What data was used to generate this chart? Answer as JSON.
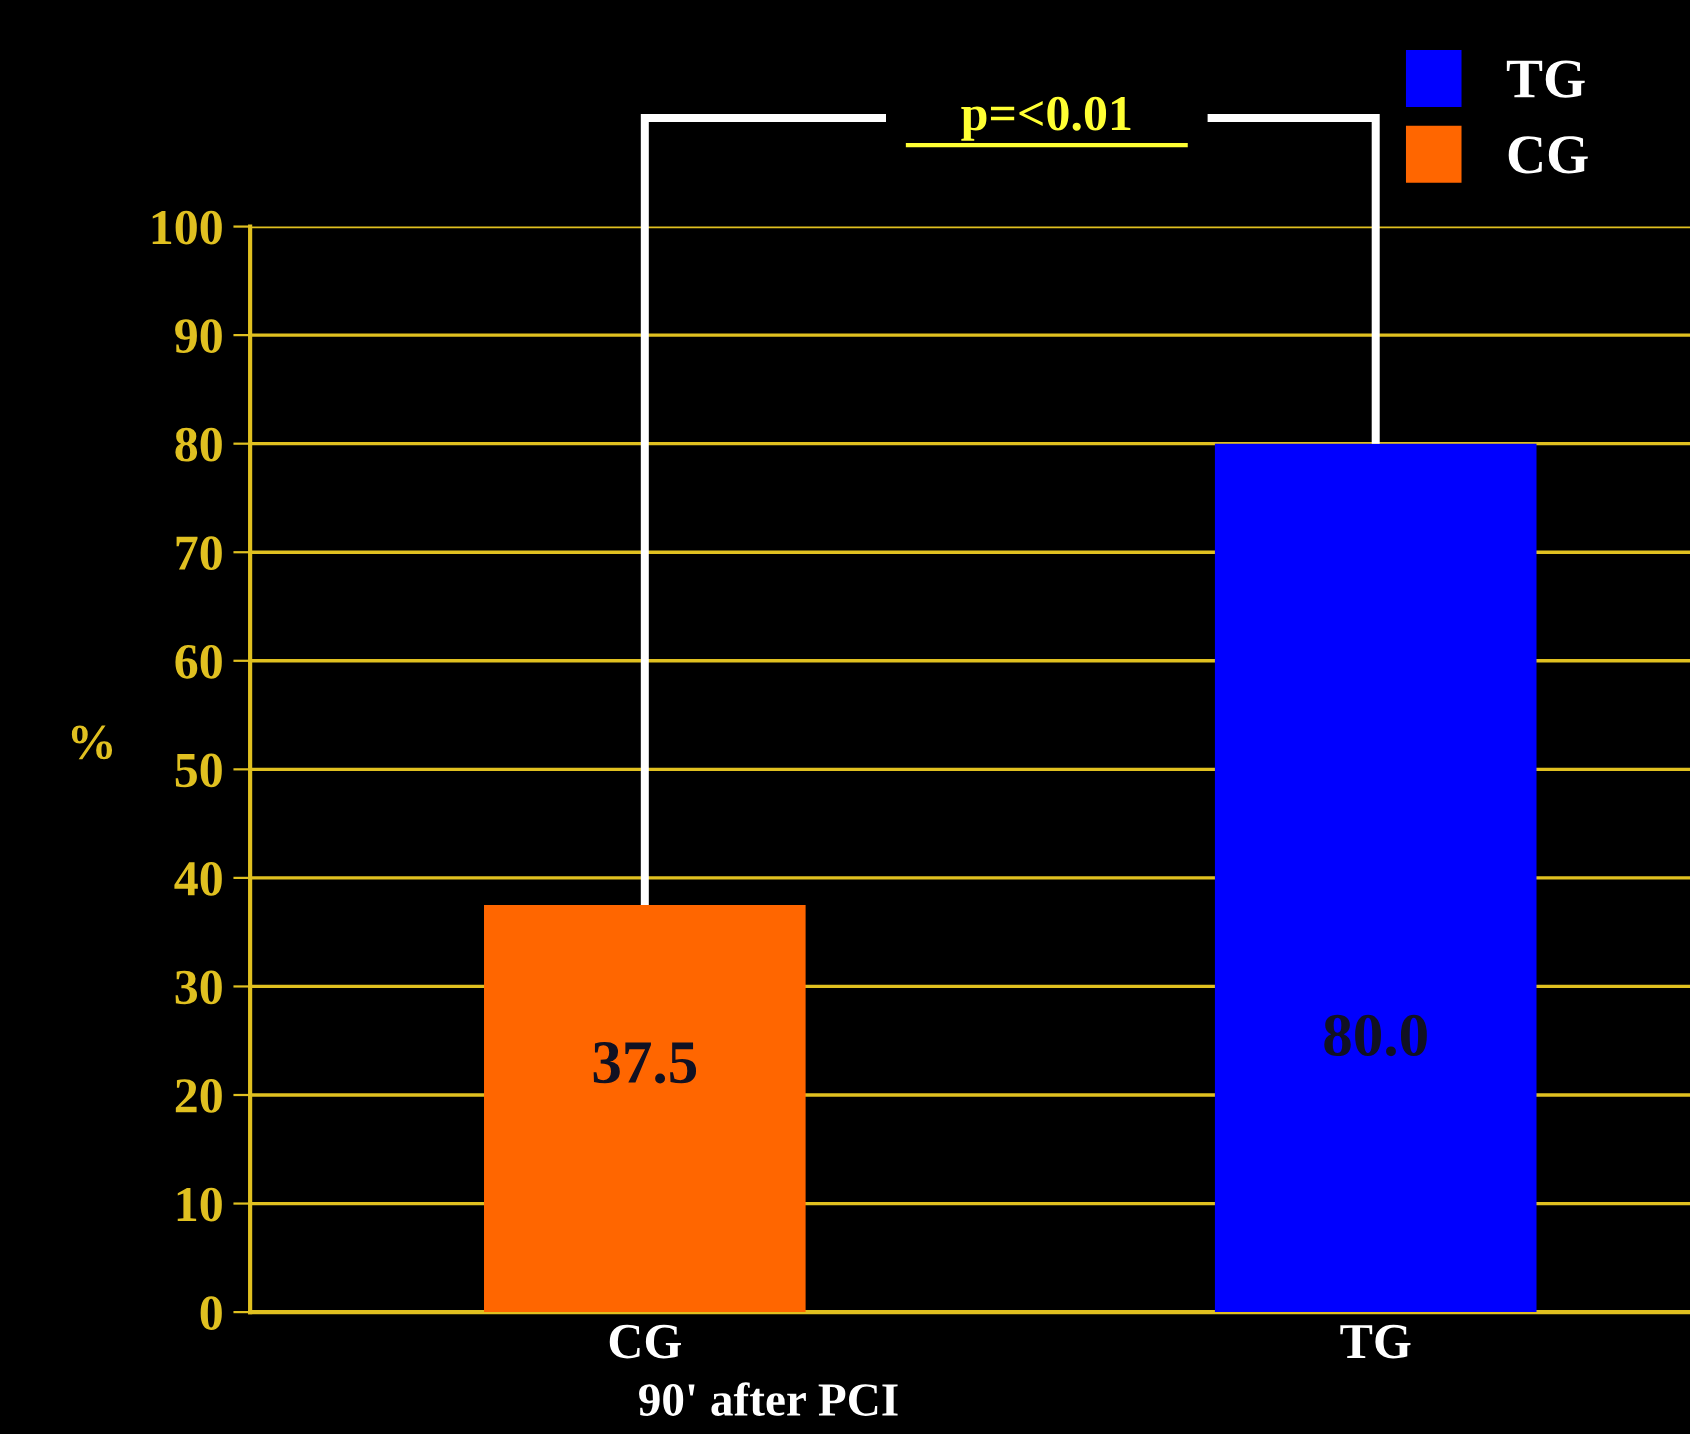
{
  "chart_data": {
    "type": "bar",
    "categories": [
      "CG",
      "TG"
    ],
    "series": [
      {
        "name": "TG",
        "color": "#0000ff",
        "values": [
          null,
          80.0
        ],
        "value_labels": [
          null,
          "80.0"
        ]
      },
      {
        "name": "CG",
        "color": "#ff6600",
        "values": [
          37.5,
          null
        ],
        "value_labels": [
          "37.5",
          null
        ]
      }
    ],
    "stacked": true,
    "ylabel": "%",
    "xlabel": "90' after PCI",
    "ylim": [
      0,
      100
    ],
    "yticks": [
      0,
      10,
      20,
      30,
      40,
      50,
      60,
      70,
      80,
      90,
      100
    ],
    "grid": "y",
    "legend": "top right",
    "annotations": [
      "p=<0.01"
    ]
  }
}
